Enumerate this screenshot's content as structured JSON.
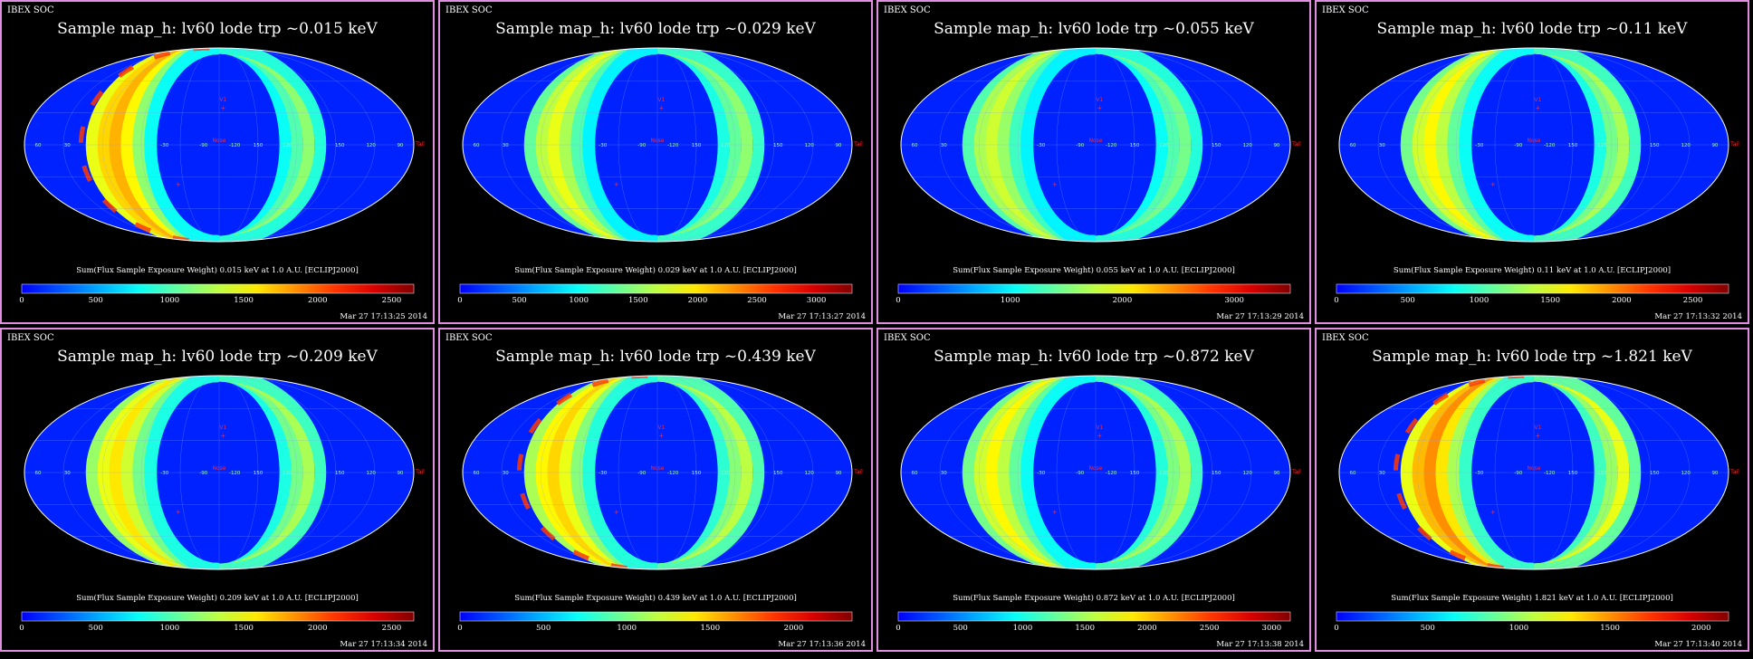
{
  "panels": [
    {
      "org": "IBEX SOC",
      "title": "Sample map_h: lv60 lode trp ~0.015 keV",
      "colorbar_label": "Sum(Flux Sample Exposure Weight)  0.015 keV at 1.0 A.U. [ECLIPJ2000]",
      "ticks": [
        "0",
        "500",
        "1000",
        "1500",
        "2000",
        "2500"
      ],
      "max": 2650,
      "timestamp": "Mar 27 17:13:25 2014"
    },
    {
      "org": "IBEX SOC",
      "title": "Sample map_h: lv60 lode trp ~0.029 keV",
      "colorbar_label": "Sum(Flux Sample Exposure Weight)  0.029 keV at 1.0 A.U. [ECLIPJ2000]",
      "ticks": [
        "0",
        "500",
        "1000",
        "1500",
        "2000",
        "2500",
        "3000"
      ],
      "max": 3300,
      "timestamp": "Mar 27 17:13:27 2014"
    },
    {
      "org": "IBEX SOC",
      "title": "Sample map_h: lv60 lode trp ~0.055 keV",
      "colorbar_label": "Sum(Flux Sample Exposure Weight)  0.055 keV at 1.0 A.U. [ECLIPJ2000]",
      "ticks": [
        "0",
        "1000",
        "2000",
        "3000"
      ],
      "max": 3500,
      "timestamp": "Mar 27 17:13:29 2014"
    },
    {
      "org": "IBEX SOC",
      "title": "Sample map_h: lv60 lode trp ~0.11 keV",
      "colorbar_label": "Sum(Flux Sample Exposure Weight)  0.11 keV at 1.0 A.U. [ECLIPJ2000]",
      "ticks": [
        "0",
        "500",
        "1000",
        "1500",
        "2000",
        "2500"
      ],
      "max": 2750,
      "timestamp": "Mar 27 17:13:32 2014"
    },
    {
      "org": "IBEX SOC",
      "title": "Sample map_h: lv60 lode trp ~0.209 keV",
      "colorbar_label": "Sum(Flux Sample Exposure Weight)  0.209 keV at 1.0 A.U. [ECLIPJ2000]",
      "ticks": [
        "0",
        "500",
        "1000",
        "1500",
        "2000",
        "2500"
      ],
      "max": 2650,
      "timestamp": "Mar 27 17:13:34 2014"
    },
    {
      "org": "IBEX SOC",
      "title": "Sample map_h: lv60 lode trp ~0.439 keV",
      "colorbar_label": "Sum(Flux Sample Exposure Weight)  0.439 keV at 1.0 A.U. [ECLIPJ2000]",
      "ticks": [
        "0",
        "500",
        "1000",
        "1500",
        "2000"
      ],
      "max": 2350,
      "timestamp": "Mar 27 17:13:36 2014"
    },
    {
      "org": "IBEX SOC",
      "title": "Sample map_h: lv60 lode trp ~0.872 keV",
      "colorbar_label": "Sum(Flux Sample Exposure Weight)  0.872 keV at 1.0 A.U. [ECLIPJ2000]",
      "ticks": [
        "0",
        "500",
        "1000",
        "1500",
        "2000",
        "2500",
        "3000"
      ],
      "max": 3150,
      "timestamp": "Mar 27 17:13:38 2014"
    },
    {
      "org": "IBEX SOC",
      "title": "Sample map_h: lv60 lode trp ~1.821 keV",
      "colorbar_label": "Sum(Flux Sample Exposure Weight)  1.821 keV at 1.0 A.U. [ECLIPJ2000]",
      "ticks": [
        "0",
        "500",
        "1000",
        "1500",
        "2000"
      ],
      "max": 2150,
      "timestamp": "Mar 27 17:13:40 2014"
    }
  ],
  "map_labels": {
    "lon_left": [
      "60",
      "30"
    ],
    "lon_center": [
      "-30",
      "-90",
      "-120",
      "150",
      "120"
    ],
    "lon_right": [
      "150",
      "120",
      "90"
    ],
    "v1": "V1",
    "nose": "Nose",
    "tail": "Tail"
  },
  "colors": {
    "frame": "#e08fe0",
    "map_background": "#0022ff",
    "marker": "#ff2a2a"
  }
}
